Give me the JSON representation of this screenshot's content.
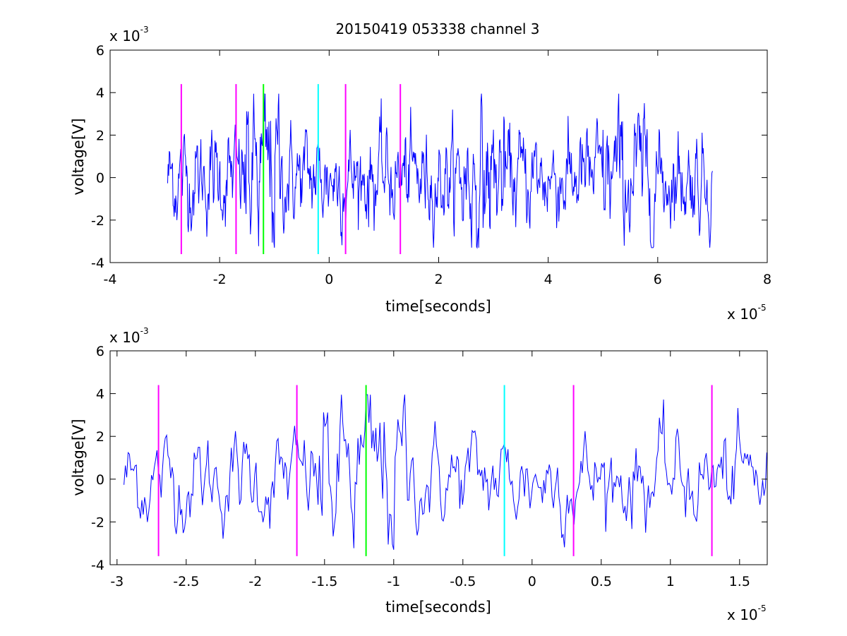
{
  "title": "20150419 053338 channel 3",
  "colors": {
    "signal": "#0000ff",
    "magenta": "#ff00ff",
    "green": "#00ff00",
    "cyan": "#00ffff",
    "axis": "#000000"
  },
  "chart_data": [
    {
      "type": "line",
      "title": "20150419 053338 channel 3",
      "xlabel": "time[seconds]",
      "ylabel": "voltage[V]",
      "x_multiplier": {
        "base": "x 10",
        "exp": "-5"
      },
      "y_multiplier": {
        "base": "x 10",
        "exp": "-3"
      },
      "xlim": [
        -4,
        8
      ],
      "ylim": [
        -4,
        6
      ],
      "x_ticks": [
        -4,
        -2,
        0,
        2,
        4,
        6,
        8
      ],
      "x_tick_labels": [
        "-4",
        "-2",
        "0",
        "2",
        "4",
        "6",
        "8"
      ],
      "y_ticks": [
        -4,
        -2,
        0,
        2,
        4,
        6
      ],
      "y_tick_labels": [
        "-4",
        "-2",
        "0",
        "2",
        "4",
        "6"
      ],
      "signal": {
        "x_range": [
          -2.95,
          7.0
        ],
        "color": "#0000ff",
        "description": "noisy voltage trace around 0"
      },
      "markers": [
        {
          "x": -2.7,
          "y_range": [
            -3.6,
            4.4
          ],
          "color": "#ff00ff"
        },
        {
          "x": -1.7,
          "y_range": [
            -3.6,
            4.4
          ],
          "color": "#ff00ff"
        },
        {
          "x": -1.2,
          "y_range": [
            -3.6,
            4.4
          ],
          "color": "#00ff00"
        },
        {
          "x": -0.2,
          "y_range": [
            -3.6,
            4.4
          ],
          "color": "#00ffff"
        },
        {
          "x": 0.3,
          "y_range": [
            -3.6,
            4.4
          ],
          "color": "#ff00ff"
        },
        {
          "x": 1.3,
          "y_range": [
            -3.6,
            4.4
          ],
          "color": "#ff00ff"
        }
      ]
    },
    {
      "type": "line",
      "title": "",
      "xlabel": "time[seconds]",
      "ylabel": "voltage[V]",
      "x_multiplier": {
        "base": "x 10",
        "exp": "-5"
      },
      "y_multiplier": {
        "base": "x 10",
        "exp": "-3"
      },
      "xlim": [
        -3.05,
        1.7
      ],
      "ylim": [
        -4,
        6
      ],
      "x_ticks": [
        -3,
        -2.5,
        -2,
        -1.5,
        -1,
        -0.5,
        0,
        0.5,
        1,
        1.5
      ],
      "x_tick_labels": [
        "-3",
        "-2.5",
        "-2",
        "-1.5",
        "-1",
        "-0.5",
        "0",
        "0.5",
        "1",
        "1.5"
      ],
      "y_ticks": [
        -4,
        -2,
        0,
        2,
        4,
        6
      ],
      "y_tick_labels": [
        "-4",
        "-2",
        "0",
        "2",
        "4",
        "6"
      ],
      "signal": {
        "x_range": [
          -2.95,
          1.7
        ],
        "color": "#0000ff",
        "description": "zoomed noisy voltage trace around 0"
      },
      "markers": [
        {
          "x": -2.7,
          "y_range": [
            -3.6,
            4.4
          ],
          "color": "#ff00ff"
        },
        {
          "x": -1.7,
          "y_range": [
            -3.6,
            4.4
          ],
          "color": "#ff00ff"
        },
        {
          "x": -1.2,
          "y_range": [
            -3.6,
            4.4
          ],
          "color": "#00ff00"
        },
        {
          "x": -0.2,
          "y_range": [
            -3.6,
            4.4
          ],
          "color": "#00ffff"
        },
        {
          "x": 0.3,
          "y_range": [
            -3.6,
            4.4
          ],
          "color": "#ff00ff"
        },
        {
          "x": 1.3,
          "y_range": [
            -3.6,
            4.4
          ],
          "color": "#ff00ff"
        }
      ]
    }
  ]
}
